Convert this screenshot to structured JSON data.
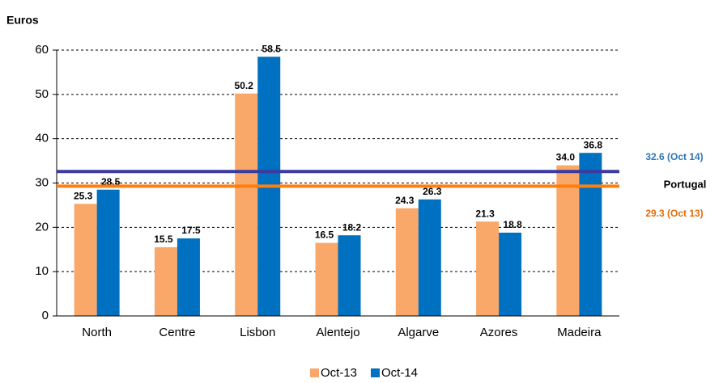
{
  "chart_data": {
    "type": "bar",
    "y_label": "Euros",
    "categories": [
      "North",
      "Centre",
      "Lisbon",
      "Alentejo",
      "Algarve",
      "Azores",
      "Madeira"
    ],
    "series": [
      {
        "name": "Oct-13",
        "color": "#f9a86a",
        "values": [
          25.3,
          15.5,
          50.2,
          16.5,
          24.3,
          21.3,
          34.0
        ],
        "value_labels": [
          "25.3",
          "15.5",
          "50.2",
          "16.5",
          "24.3",
          "21.3",
          "34.0"
        ]
      },
      {
        "name": "Oct-14",
        "color": "#0070c0",
        "values": [
          28.5,
          17.5,
          58.5,
          18.2,
          26.3,
          18.8,
          36.8
        ],
        "value_labels": [
          "28.5",
          "17.5",
          "58.5",
          "18.2",
          "26.3",
          "18.8",
          "36.8"
        ]
      }
    ],
    "reference_title": "Portugal",
    "reference_lines": [
      {
        "value": 32.6,
        "label": "32.6 (Oct 14)",
        "color": "#3a3aa0",
        "label_color": "#2e75b6"
      },
      {
        "value": 29.3,
        "label": "29.3 (Oct 13)",
        "color": "#ff7f0e",
        "label_color": "#e36c09"
      }
    ],
    "ylim": [
      0,
      60
    ],
    "yticks": [
      0,
      10,
      20,
      30,
      40,
      50,
      60
    ],
    "grid": true,
    "legend": "bottom"
  }
}
